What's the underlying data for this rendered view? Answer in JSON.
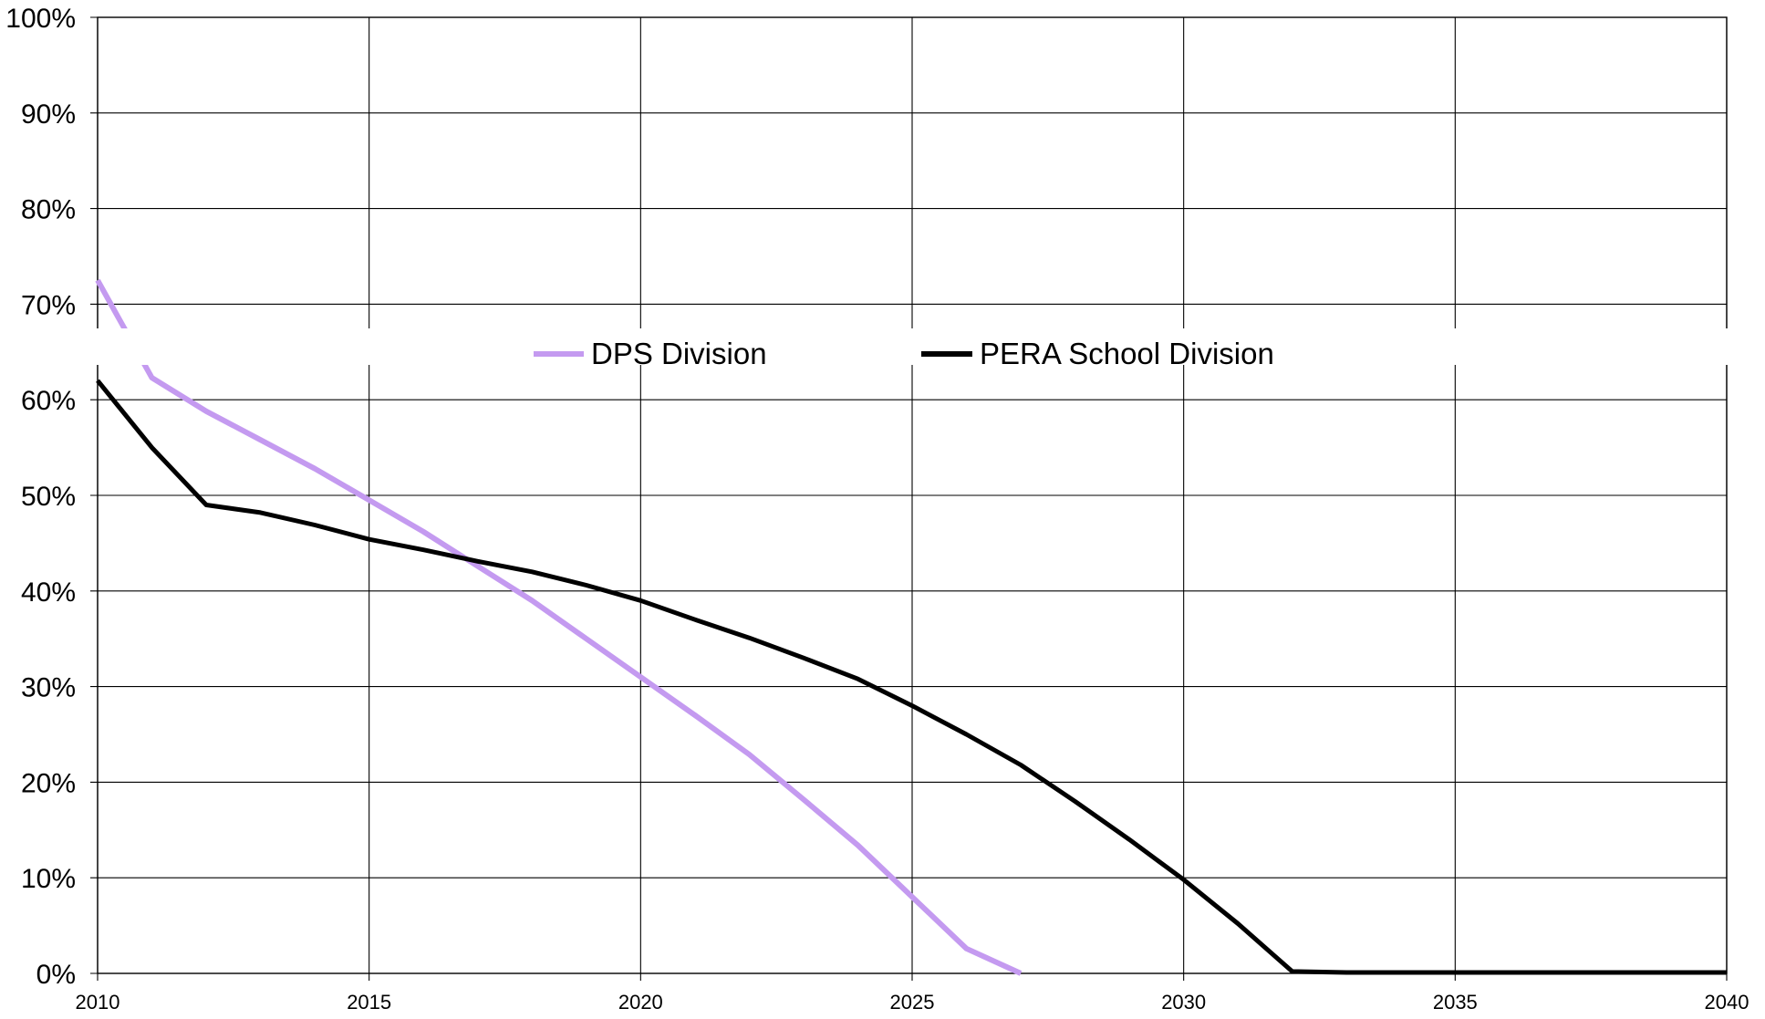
{
  "chart_data": {
    "type": "line",
    "x": [
      2010,
      2011,
      2012,
      2013,
      2014,
      2015,
      2016,
      2017,
      2018,
      2019,
      2020,
      2021,
      2022,
      2023,
      2024,
      2025,
      2026,
      2027,
      2028,
      2029,
      2030,
      2031,
      2032,
      2033,
      2034,
      2035,
      2036,
      2037,
      2038,
      2039,
      2040
    ],
    "series": [
      {
        "name": "DPS Division",
        "color": "#c49af0",
        "values": [
          72.5,
          62.3,
          58.8,
          55.8,
          52.8,
          49.5,
          46.2,
          42.6,
          39.0,
          35.0,
          31.0,
          27.0,
          22.9,
          18.2,
          13.4,
          8.0,
          2.6,
          0.0,
          null,
          null,
          null,
          null,
          null,
          null,
          null,
          null,
          null,
          null,
          null,
          null,
          null
        ]
      },
      {
        "name": "PERA School Division",
        "color": "#000000",
        "values": [
          62.0,
          55.0,
          49.0,
          48.2,
          46.9,
          45.4,
          44.3,
          43.1,
          42.0,
          40.6,
          39.0,
          37.0,
          35.1,
          33.0,
          30.8,
          28.0,
          25.0,
          21.8,
          18.0,
          14.0,
          9.8,
          5.2,
          0.2,
          0.1,
          0.1,
          0.1,
          0.1,
          0.1,
          0.1,
          0.1,
          0.1
        ]
      }
    ],
    "xlim": [
      2010,
      2040
    ],
    "ylim": [
      0,
      100
    ],
    "x_ticks": [
      2010,
      2015,
      2020,
      2025,
      2030,
      2035,
      2040
    ],
    "x_tick_labels": [
      "2010",
      "2015",
      "2020",
      "2025",
      "2030",
      "2035",
      "2040"
    ],
    "y_ticks": [
      0,
      10,
      20,
      30,
      40,
      50,
      60,
      70,
      80,
      90,
      100
    ],
    "y_tick_labels": [
      "0%",
      "10%",
      "20%",
      "30%",
      "40%",
      "50%",
      "60%",
      "70%",
      "80%",
      "90%",
      "100%"
    ],
    "title": "",
    "xlabel": "",
    "ylabel": "",
    "grid": true,
    "legend_position": "top-center"
  }
}
